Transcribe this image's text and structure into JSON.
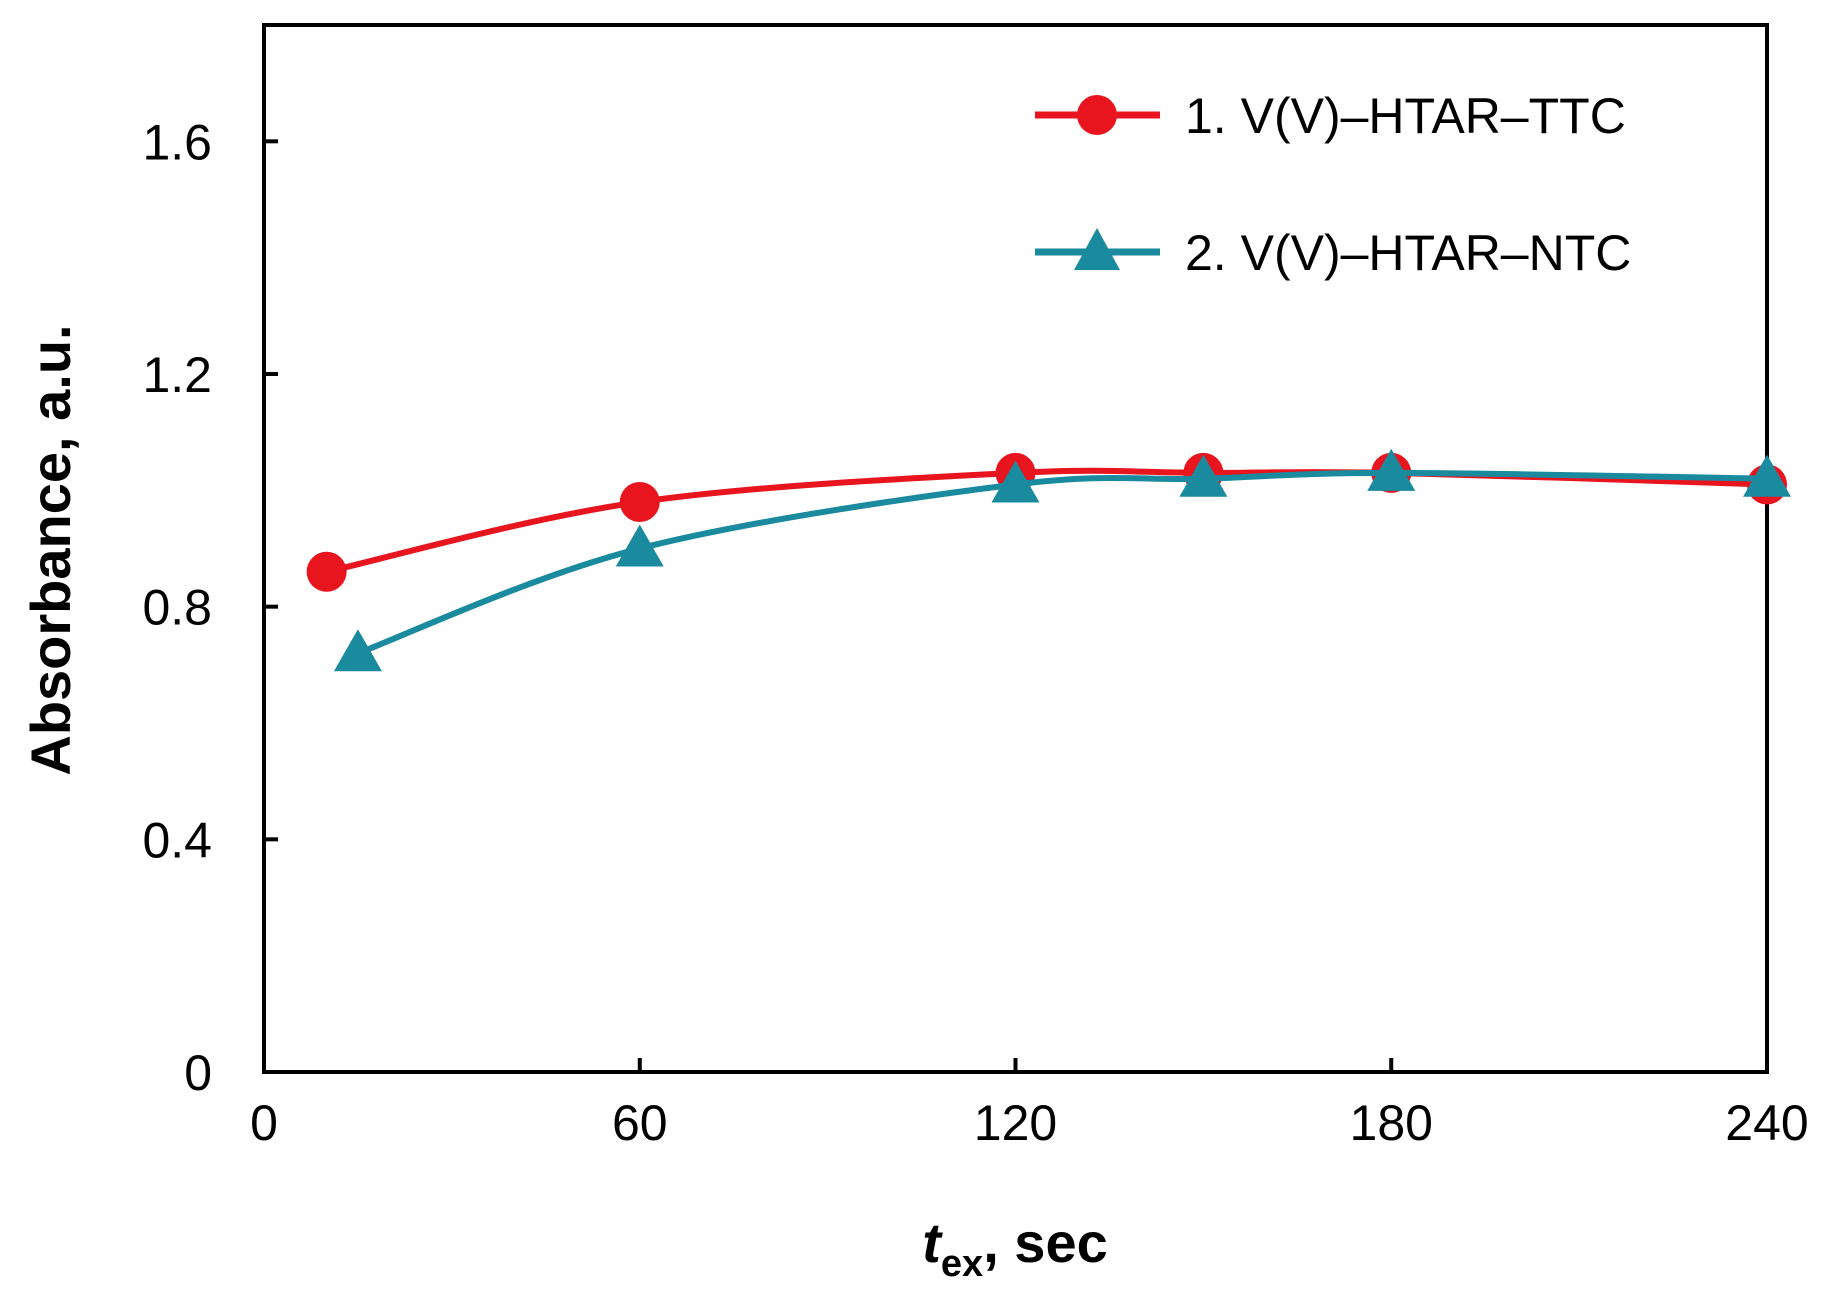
{
  "chart_data": {
    "type": "line",
    "xlabel": "t_ex, sec",
    "xlabel_main": "t",
    "xlabel_sub": "ex",
    "xlabel_rest": ", sec",
    "ylabel": "Absorbance, a.u.",
    "xlim": [
      0,
      240
    ],
    "ylim": [
      0,
      1.8
    ],
    "xticks": [
      0,
      60,
      120,
      180,
      240
    ],
    "xtick_labels": [
      "0",
      "60",
      "120",
      "180",
      "240"
    ],
    "yticks": [
      0,
      0.4,
      0.8,
      1.2,
      1.6
    ],
    "ytick_labels": [
      "0",
      "0.4",
      "0.8",
      "1.2",
      "1.6"
    ],
    "grid": false,
    "legend_position": "top-right",
    "series": [
      {
        "name": "1. V(V)–HTAR–TTC",
        "color": "#e8141e",
        "marker": "circle",
        "x": [
          10,
          60,
          120,
          150,
          180,
          240
        ],
        "y": [
          0.86,
          0.98,
          1.03,
          1.03,
          1.03,
          1.01
        ]
      },
      {
        "name": "2. V(V)–HTAR–NTC",
        "color": "#1a8a9e",
        "marker": "triangle",
        "x": [
          15,
          60,
          120,
          150,
          180,
          240
        ],
        "y": [
          0.72,
          0.9,
          1.01,
          1.02,
          1.03,
          1.02
        ]
      }
    ]
  }
}
